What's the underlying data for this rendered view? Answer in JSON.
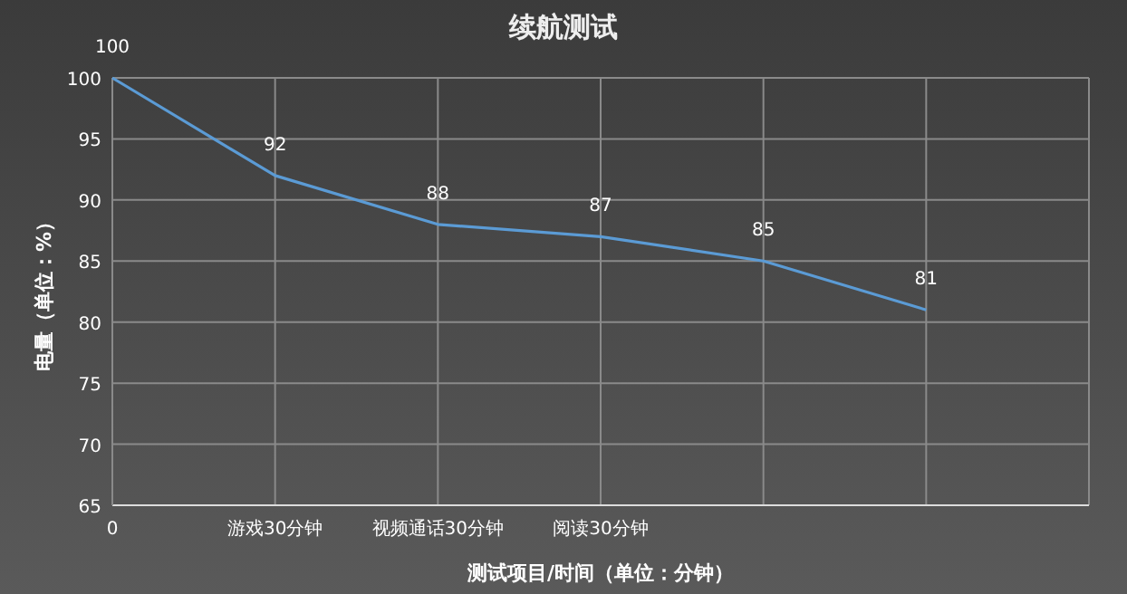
{
  "chart_data": {
    "type": "line",
    "title": "续航测试",
    "xlabel": "测试项目/时间（单位：分钟）",
    "ylabel": "电量（单位：%）",
    "categories": [
      "0",
      "游戏30分钟",
      "视频通话30分钟",
      "阅读30分钟",
      null,
      null,
      null
    ],
    "series": [
      {
        "color": "#5b9bd5",
        "values": [
          100,
          92,
          88,
          87,
          85,
          81,
          null
        ]
      }
    ],
    "ylim": [
      65,
      100
    ],
    "yticks": [
      65,
      70,
      75,
      80,
      85,
      90,
      95,
      100
    ],
    "grid": true,
    "data_labels": true,
    "marker": "none",
    "line_style": "solid"
  }
}
